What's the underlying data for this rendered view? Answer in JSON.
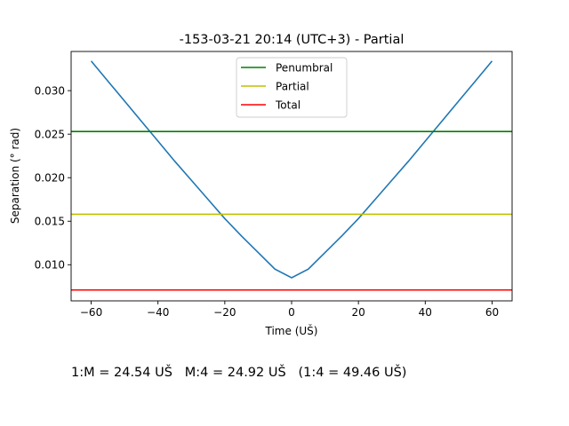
{
  "chart_data": {
    "type": "line",
    "title": "-153-03-21 20:14 (UTC+3) - Partial",
    "xlabel": "Time (UŠ)",
    "ylabel": "Separation (° rad)",
    "xlim": [
      -66,
      66
    ],
    "ylim": [
      0.00585,
      0.0345
    ],
    "x_ticks": [
      -60,
      -40,
      -20,
      0,
      20,
      40,
      60
    ],
    "x_tick_labels": [
      "−60",
      "−40",
      "−20",
      "0",
      "20",
      "40",
      "60"
    ],
    "y_ticks": [
      0.01,
      0.015,
      0.02,
      0.025,
      0.03
    ],
    "y_tick_labels": [
      "0.010",
      "0.015",
      "0.020",
      "0.025",
      "0.030"
    ],
    "grid": false,
    "legend_position": "top-center",
    "series": [
      {
        "kind": "curve",
        "color": "#1f77b4",
        "x": [
          -60,
          -55,
          -50,
          -45,
          -40,
          -35,
          -30,
          -25,
          -20,
          -15,
          -10,
          -5,
          0,
          5,
          10,
          15,
          20,
          25,
          30,
          35,
          40,
          45,
          50,
          55,
          60
        ],
        "y": [
          0.0334,
          0.0311,
          0.0288,
          0.0265,
          0.0242,
          0.0219,
          0.0197,
          0.0175,
          0.0153,
          0.0133,
          0.0114,
          0.0095,
          0.0085,
          0.0095,
          0.0114,
          0.0133,
          0.0153,
          0.0175,
          0.0197,
          0.0219,
          0.0242,
          0.0265,
          0.0288,
          0.0311,
          0.0334
        ]
      },
      {
        "kind": "hline",
        "name": "Penumbral",
        "color": "#008000",
        "y": 0.0253
      },
      {
        "kind": "hline",
        "name": "Partial",
        "color": "#bfbf00",
        "y": 0.0158
      },
      {
        "kind": "hline",
        "name": "Total",
        "color": "#ff0000",
        "y": 0.0071
      }
    ]
  },
  "footer": {
    "contacts": "1:M = 24.54 UŠ   M:4 = 24.92 UŠ   (1:4 = 49.46 UŠ)"
  }
}
